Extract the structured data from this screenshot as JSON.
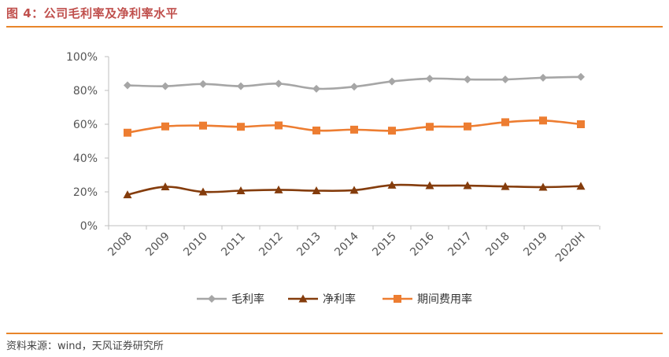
{
  "title": "图 4：公司毛利率及净利率水平",
  "source": "资料来源：wind，天风证券研究所",
  "chart_data": {
    "type": "line",
    "categories": [
      "2008",
      "2009",
      "2010",
      "2011",
      "2012",
      "2013",
      "2014",
      "2015",
      "2016",
      "2017",
      "2018",
      "2019",
      "2020H"
    ],
    "series": [
      {
        "name": "毛利率",
        "color": "#a6a6a6",
        "marker": "diamond",
        "values": [
          83,
          82.5,
          83.8,
          82.5,
          84,
          81,
          82.2,
          85.3,
          87,
          86.5,
          86.5,
          87.5,
          88
        ]
      },
      {
        "name": "净利率",
        "color": "#843c0c",
        "marker": "triangle",
        "values": [
          18.3,
          23,
          20,
          20.7,
          21.2,
          20.7,
          21,
          24,
          23.7,
          23.7,
          23.2,
          22.8,
          23.4
        ]
      },
      {
        "name": "期间费用率",
        "color": "#ed7d31",
        "marker": "square",
        "values": [
          55,
          58.7,
          59.2,
          58.5,
          59.3,
          56.3,
          56.8,
          56.2,
          58.5,
          58.7,
          61.2,
          62.2,
          60
        ]
      }
    ],
    "y_ticks": [
      "0%",
      "20%",
      "40%",
      "60%",
      "80%",
      "100%"
    ],
    "ylim": [
      0,
      100
    ],
    "grid": false,
    "legend_position": "bottom"
  }
}
